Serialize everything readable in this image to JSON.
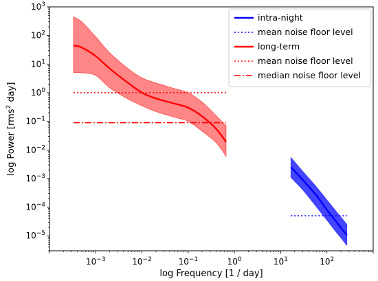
{
  "chart_data": {
    "type": "line",
    "xscale": "log",
    "yscale": "log",
    "xlabel": "log Frequency [1 / day]",
    "ylabel_prefix": "log Power [rms",
    "ylabel_sup": "2",
    "ylabel_suffix": " day]",
    "xlim": [
      0.0001,
      1000
    ],
    "ylim": [
      3e-06,
      1000
    ],
    "x_ticks": [
      {
        "value": 0.001,
        "base": "10",
        "exp": "−3"
      },
      {
        "value": 0.01,
        "base": "10",
        "exp": "−2"
      },
      {
        "value": 0.1,
        "base": "10",
        "exp": "−1"
      },
      {
        "value": 1,
        "base": "10",
        "exp": "0"
      },
      {
        "value": 10,
        "base": "10",
        "exp": "1"
      },
      {
        "value": 100,
        "base": "10",
        "exp": "2"
      }
    ],
    "y_ticks": [
      {
        "value": 1e-05,
        "base": "10",
        "exp": "−5"
      },
      {
        "value": 0.0001,
        "base": "10",
        "exp": "−4"
      },
      {
        "value": 0.001,
        "base": "10",
        "exp": "−3"
      },
      {
        "value": 0.01,
        "base": "10",
        "exp": "−2"
      },
      {
        "value": 0.1,
        "base": "10",
        "exp": "−1"
      },
      {
        "value": 1,
        "base": "10",
        "exp": "0"
      },
      {
        "value": 10,
        "base": "10",
        "exp": "1"
      },
      {
        "value": 100,
        "base": "10",
        "exp": "2"
      },
      {
        "value": 1000,
        "base": "10",
        "exp": "3"
      }
    ],
    "series": [
      {
        "name": "intra-night",
        "color": "#0000ff",
        "style": "solid",
        "x": [
          16.6,
          30,
          60,
          100,
          150,
          200,
          270
        ],
        "y": [
          0.0025,
          0.0009,
          0.00025,
          8e-05,
          3.5e-05,
          1.9e-05,
          1.05e-05
        ],
        "band_upper": [
          0.0055,
          0.0018,
          0.0005,
          0.00018,
          8e-05,
          4.5e-05,
          2.5e-05
        ],
        "band_lower": [
          0.0011,
          0.0004,
          0.0001,
          3.5e-05,
          1.5e-05,
          8.5e-06,
          4.6e-06
        ],
        "band_color": "#3b3bff"
      },
      {
        "name": "mean noise floor level",
        "color": "#0000ff",
        "style": "dotted",
        "x": [
          16.6,
          270
        ],
        "y": [
          5e-05,
          5e-05
        ]
      },
      {
        "name": "long-term",
        "color": "#ff0000",
        "style": "solid",
        "x": [
          0.00033,
          0.0005,
          0.001,
          0.002,
          0.005,
          0.01,
          0.02,
          0.05,
          0.1,
          0.2,
          0.4,
          0.66
        ],
        "y": [
          45,
          38,
          19,
          7,
          2.2,
          1.0,
          0.63,
          0.42,
          0.3,
          0.15,
          0.055,
          0.019
        ],
        "band_upper": [
          450,
          300,
          90,
          25,
          7,
          3.3,
          2.2,
          1.4,
          1.0,
          0.47,
          0.16,
          0.07
        ],
        "band_lower": [
          5,
          5,
          4,
          1.5,
          0.6,
          0.35,
          0.22,
          0.14,
          0.1,
          0.045,
          0.018,
          0.006
        ],
        "band_color": "#ff7f7f"
      },
      {
        "name": "mean noise floor level",
        "color": "#ff0000",
        "style": "dotted",
        "x": [
          0.00033,
          0.66
        ],
        "y": [
          1.0,
          1.0
        ]
      },
      {
        "name": "median noise floor level",
        "color": "#ff0000",
        "style": "dashdot",
        "x": [
          0.00033,
          0.66
        ],
        "y": [
          0.09,
          0.09
        ]
      }
    ],
    "legend": {
      "position": "upper right",
      "entries": [
        {
          "label": "intra-night",
          "color": "#0000ff",
          "style": "solid"
        },
        {
          "label": "mean noise floor level",
          "color": "#0000ff",
          "style": "dotted"
        },
        {
          "label": "long-term",
          "color": "#ff0000",
          "style": "solid"
        },
        {
          "label": "mean noise floor level",
          "color": "#ff0000",
          "style": "dotted"
        },
        {
          "label": "median noise floor level",
          "color": "#ff0000",
          "style": "dashdot"
        }
      ]
    },
    "grid": false
  }
}
